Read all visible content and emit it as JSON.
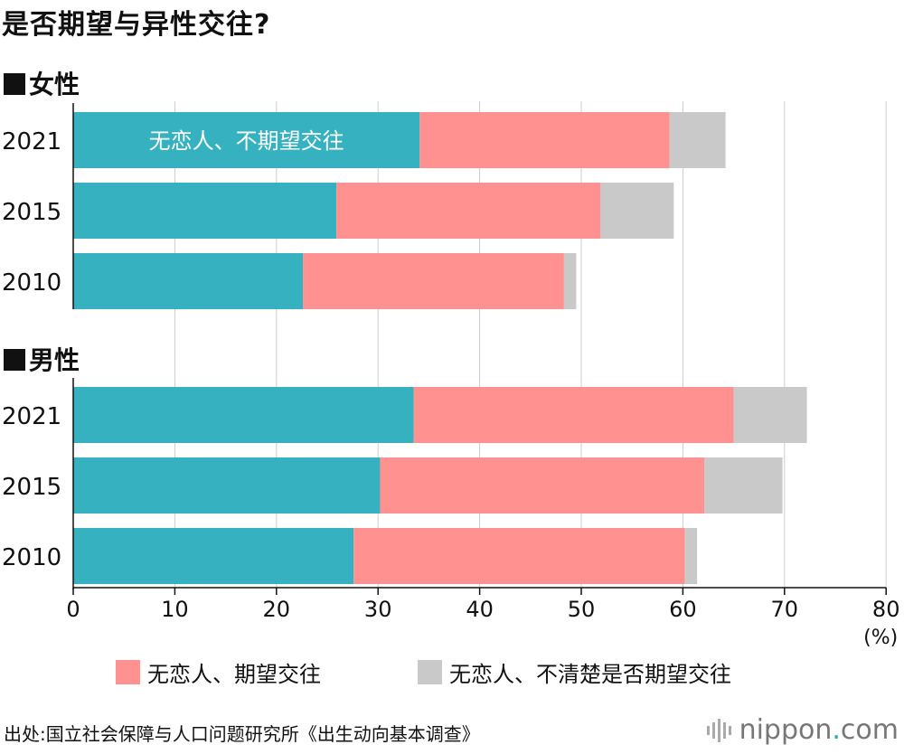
{
  "title": "是否期望与异性交往?",
  "groups": [
    {
      "label": "女性"
    },
    {
      "label": "男性"
    }
  ],
  "inline_label": "无恋人、不期望交往",
  "axis_unit": "(%)",
  "legend": [
    {
      "label": "无恋人、期望交往",
      "color": "#ff9191"
    },
    {
      "label": "无恋人、不清楚是否期望交往",
      "color": "#c9c9c9"
    }
  ],
  "source": "出处:国立社会保障与人口问题研究所《出生动向基本调查》",
  "logo": {
    "name": "nippon",
    "dot": ".",
    "suffix": "com"
  },
  "colors": {
    "no_wish": "#35b1bf",
    "wish": "#ff9191",
    "unsure": "#c9c9c9",
    "grid": "#cccccc"
  },
  "chart_data": {
    "type": "bar",
    "orientation": "horizontal",
    "stacked": true,
    "xlim": [
      0,
      80
    ],
    "xticks": [
      0,
      10,
      20,
      30,
      40,
      50,
      60,
      70,
      80
    ],
    "xlabel": "(%)",
    "panels": [
      {
        "title": "女性",
        "categories": [
          "2021",
          "2015",
          "2010"
        ],
        "series": [
          {
            "name": "无恋人、不期望交往",
            "values": [
              34.1,
              25.9,
              22.6
            ]
          },
          {
            "name": "无恋人、期望交往",
            "values": [
              24.6,
              26.0,
              25.7
            ]
          },
          {
            "name": "无恋人、不清楚是否期望交往",
            "values": [
              5.5,
              7.2,
              1.2
            ]
          }
        ]
      },
      {
        "title": "男性",
        "categories": [
          "2021",
          "2015",
          "2010"
        ],
        "series": [
          {
            "name": "无恋人、不期望交往",
            "values": [
              33.5,
              30.2,
              27.6
            ]
          },
          {
            "name": "无恋人、期望交往",
            "values": [
              31.5,
              31.9,
              32.6
            ]
          },
          {
            "name": "无恋人、不清楚是否期望交往",
            "values": [
              7.2,
              7.7,
              1.2
            ]
          }
        ]
      }
    ]
  }
}
